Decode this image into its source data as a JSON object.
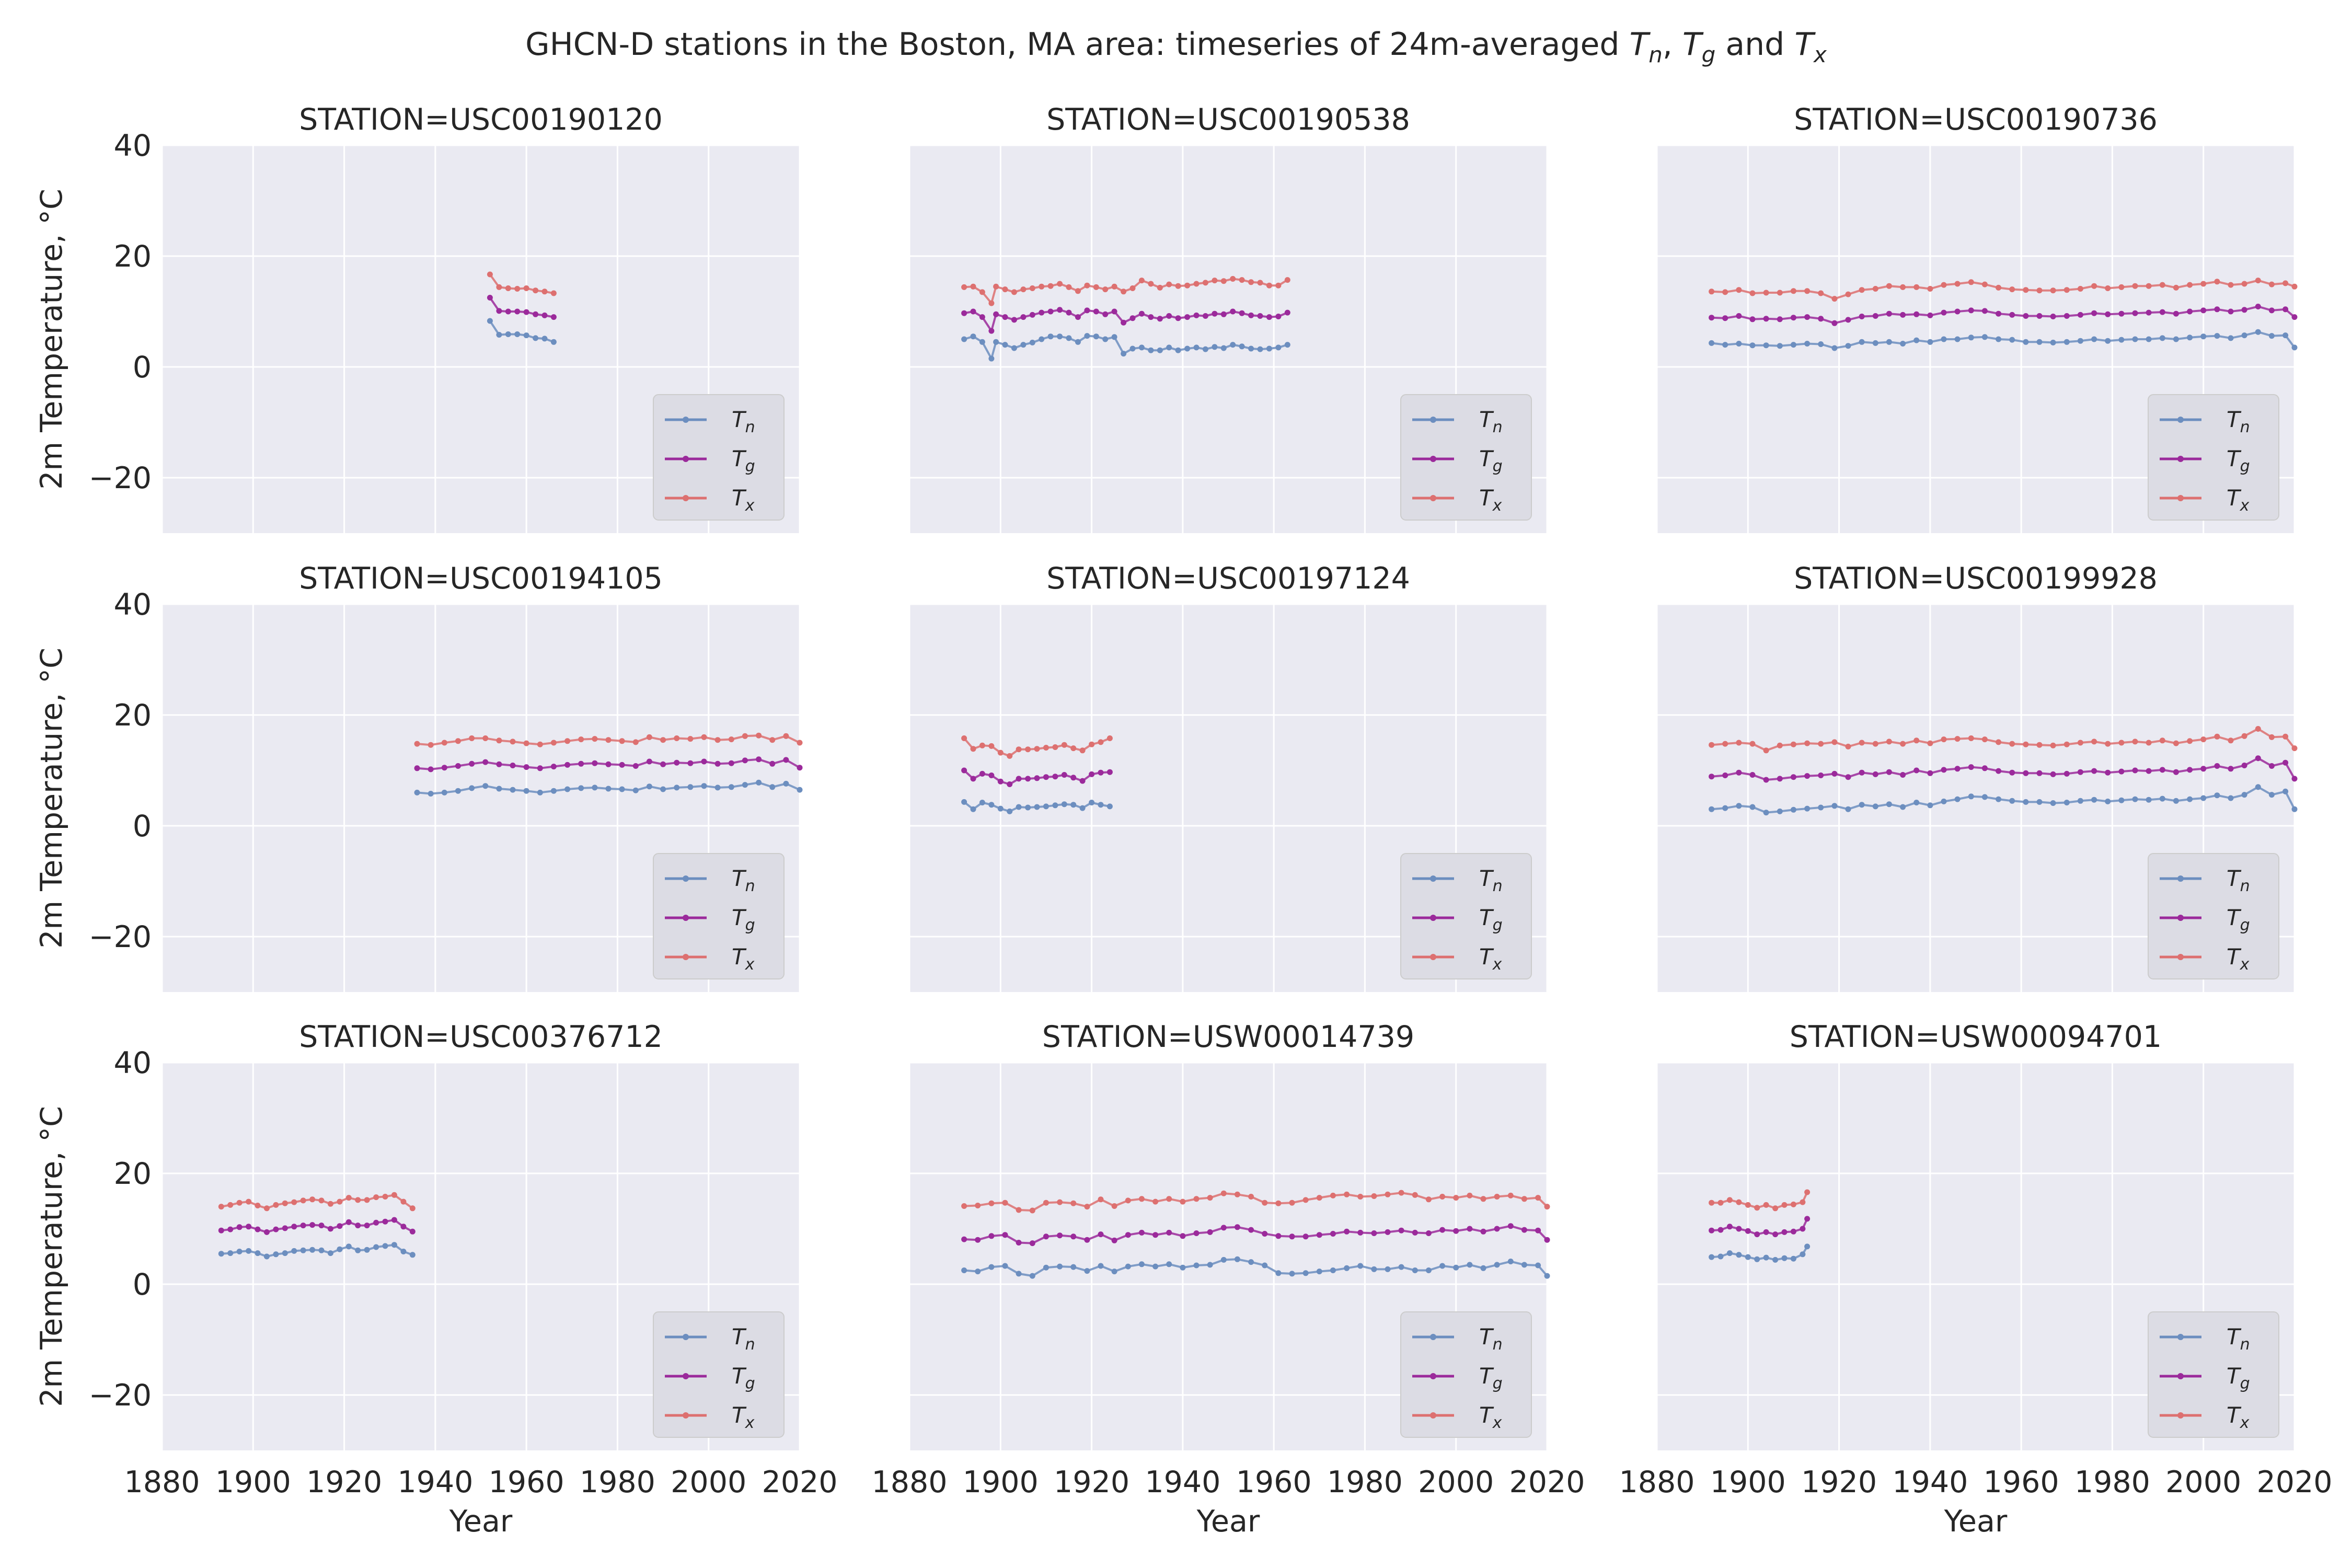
{
  "figure": {
    "title_parts": [
      {
        "text": "GHCN-D stations in the Boston, MA area: timeseries of 24m-averaged ",
        "math": false
      },
      {
        "text": "T",
        "math": true,
        "sub": "n"
      },
      {
        "text": ", ",
        "math": false
      },
      {
        "text": "T",
        "math": true,
        "sub": "g"
      },
      {
        "text": " and ",
        "math": false
      },
      {
        "text": "T",
        "math": true,
        "sub": "x"
      }
    ],
    "xlabel": "Year",
    "ylabel": "2m Temperature, °C",
    "background": "#eaeaf2",
    "grid": true,
    "legend_placement": "lower-right"
  },
  "chart_data": {
    "type": "line",
    "xlim": [
      1880,
      2020
    ],
    "ylim": [
      -30,
      40
    ],
    "xticks": [
      "1880",
      "1900",
      "1920",
      "1940",
      "1960",
      "1980",
      "2000",
      "2020"
    ],
    "yticks": [
      "40",
      "20",
      "0",
      "−20"
    ],
    "ytick_values": [
      40,
      20,
      0,
      -20
    ],
    "xtick_values": [
      1880,
      1900,
      1920,
      1940,
      1960,
      1980,
      2000,
      2020
    ],
    "series_legend": [
      {
        "key": "Tn",
        "label": "T",
        "sub": "n",
        "color": "#6c8ebf"
      },
      {
        "key": "Tg",
        "label": "T",
        "sub": "g",
        "color": "#9b2a9b"
      },
      {
        "key": "Tx",
        "label": "T",
        "sub": "x",
        "color": "#dd7070"
      }
    ],
    "panels": [
      {
        "title": "STATION=USC00190120",
        "x": [
          1952,
          1954,
          1956,
          1958,
          1960,
          1962,
          1964,
          1966
        ],
        "Tn": [
          8.3,
          5.8,
          5.9,
          5.9,
          5.7,
          5.2,
          5.1,
          4.5
        ],
        "Tg": [
          12.5,
          10.1,
          10.0,
          10.0,
          9.9,
          9.5,
          9.3,
          9.0
        ],
        "Tx": [
          16.7,
          14.4,
          14.2,
          14.1,
          14.2,
          13.8,
          13.6,
          13.3
        ]
      },
      {
        "title": "STATION=USC00190538",
        "x": [
          1892,
          1894,
          1896,
          1898,
          1899,
          1901,
          1903,
          1905,
          1907,
          1909,
          1911,
          1913,
          1915,
          1917,
          1919,
          1921,
          1923,
          1925,
          1927,
          1929,
          1931,
          1933,
          1935,
          1937,
          1939,
          1941,
          1943,
          1945,
          1947,
          1949,
          1951,
          1953,
          1955,
          1957,
          1959,
          1961,
          1963
        ],
        "Tn": [
          5.0,
          5.5,
          4.5,
          1.5,
          4.5,
          4.0,
          3.4,
          4.0,
          4.4,
          5.0,
          5.5,
          5.5,
          5.2,
          4.5,
          5.6,
          5.5,
          5.0,
          5.4,
          2.4,
          3.3,
          3.5,
          3.0,
          3.0,
          3.5,
          3.0,
          3.3,
          3.5,
          3.2,
          3.6,
          3.4,
          4.0,
          3.7,
          3.3,
          3.2,
          3.3,
          3.5,
          4.0
        ],
        "Tg": [
          9.7,
          10.0,
          9.0,
          6.5,
          9.5,
          9.0,
          8.5,
          9.0,
          9.4,
          9.8,
          10.0,
          10.3,
          9.8,
          9.0,
          10.2,
          10.0,
          9.5,
          10.0,
          8.0,
          8.8,
          9.6,
          9.0,
          8.7,
          9.2,
          8.8,
          9.0,
          9.3,
          9.2,
          9.6,
          9.5,
          10.0,
          9.7,
          9.3,
          9.2,
          9.0,
          9.1,
          9.8
        ],
        "Tx": [
          14.4,
          14.5,
          13.5,
          11.5,
          14.5,
          14.0,
          13.5,
          14.0,
          14.2,
          14.5,
          14.6,
          15.0,
          14.4,
          13.7,
          14.7,
          14.4,
          14.0,
          14.5,
          13.6,
          14.2,
          15.6,
          15.0,
          14.3,
          14.9,
          14.6,
          14.7,
          15.0,
          15.2,
          15.6,
          15.5,
          15.9,
          15.7,
          15.3,
          15.2,
          14.7,
          14.7,
          15.7
        ]
      },
      {
        "title": "STATION=USC00190736",
        "x": [
          1892,
          1895,
          1898,
          1901,
          1904,
          1907,
          1910,
          1913,
          1916,
          1919,
          1922,
          1925,
          1928,
          1931,
          1934,
          1937,
          1940,
          1943,
          1946,
          1949,
          1952,
          1955,
          1958,
          1961,
          1964,
          1967,
          1970,
          1973,
          1976,
          1979,
          1982,
          1985,
          1988,
          1991,
          1994,
          1997,
          2000,
          2003,
          2006,
          2009,
          2012,
          2015,
          2018,
          2020
        ],
        "Tn": [
          4.3,
          4.0,
          4.2,
          3.9,
          3.9,
          3.8,
          4.0,
          4.2,
          4.1,
          3.4,
          3.8,
          4.5,
          4.3,
          4.5,
          4.2,
          4.8,
          4.5,
          5.0,
          5.0,
          5.3,
          5.4,
          5.0,
          4.9,
          4.5,
          4.5,
          4.4,
          4.5,
          4.7,
          5.0,
          4.7,
          4.9,
          5.0,
          5.0,
          5.2,
          5.0,
          5.3,
          5.5,
          5.6,
          5.2,
          5.7,
          6.3,
          5.6,
          5.7,
          3.5
        ],
        "Tg": [
          8.9,
          8.8,
          9.2,
          8.6,
          8.7,
          8.6,
          8.9,
          9.0,
          8.7,
          7.9,
          8.5,
          9.1,
          9.2,
          9.6,
          9.4,
          9.5,
          9.3,
          9.8,
          10.0,
          10.2,
          10.1,
          9.6,
          9.4,
          9.2,
          9.2,
          9.1,
          9.2,
          9.4,
          9.7,
          9.5,
          9.6,
          9.7,
          9.8,
          9.9,
          9.6,
          10.0,
          10.2,
          10.4,
          10.0,
          10.3,
          10.9,
          10.2,
          10.4,
          9.0
        ],
        "Tx": [
          13.6,
          13.5,
          13.9,
          13.3,
          13.4,
          13.4,
          13.7,
          13.7,
          13.3,
          12.3,
          13.1,
          13.9,
          14.1,
          14.6,
          14.4,
          14.4,
          14.1,
          14.8,
          15.0,
          15.3,
          14.9,
          14.3,
          14.0,
          13.9,
          13.8,
          13.8,
          13.9,
          14.1,
          14.6,
          14.2,
          14.4,
          14.6,
          14.6,
          14.8,
          14.3,
          14.8,
          15.0,
          15.4,
          14.8,
          15.0,
          15.6,
          14.9,
          15.1,
          14.5
        ]
      },
      {
        "title": "STATION=USC00194105",
        "x": [
          1936,
          1939,
          1942,
          1945,
          1948,
          1951,
          1954,
          1957,
          1960,
          1963,
          1966,
          1969,
          1972,
          1975,
          1978,
          1981,
          1984,
          1987,
          1990,
          1993,
          1996,
          1999,
          2002,
          2005,
          2008,
          2011,
          2014,
          2017,
          2020
        ],
        "Tn": [
          6.0,
          5.8,
          6.0,
          6.3,
          6.8,
          7.2,
          6.7,
          6.5,
          6.3,
          6.0,
          6.3,
          6.6,
          6.8,
          6.9,
          6.7,
          6.6,
          6.4,
          7.1,
          6.6,
          6.9,
          7.0,
          7.2,
          6.9,
          7.0,
          7.4,
          7.8,
          7.0,
          7.6,
          6.5
        ],
        "Tg": [
          10.4,
          10.2,
          10.5,
          10.8,
          11.2,
          11.5,
          11.1,
          10.9,
          10.6,
          10.4,
          10.7,
          11.0,
          11.2,
          11.3,
          11.1,
          11.0,
          10.8,
          11.6,
          11.1,
          11.4,
          11.3,
          11.6,
          11.2,
          11.3,
          11.8,
          12.0,
          11.2,
          11.9,
          10.5
        ],
        "Tx": [
          14.8,
          14.6,
          15.0,
          15.3,
          15.8,
          15.8,
          15.4,
          15.2,
          14.9,
          14.7,
          15.0,
          15.3,
          15.6,
          15.7,
          15.5,
          15.3,
          15.1,
          16.0,
          15.5,
          15.8,
          15.7,
          16.0,
          15.5,
          15.6,
          16.2,
          16.3,
          15.5,
          16.2,
          15.0
        ]
      },
      {
        "title": "STATION=USC00197124",
        "x": [
          1892,
          1894,
          1896,
          1898,
          1900,
          1902,
          1904,
          1906,
          1908,
          1910,
          1912,
          1914,
          1916,
          1918,
          1920,
          1922,
          1924
        ],
        "Tn": [
          4.3,
          3.0,
          4.2,
          3.8,
          3.1,
          2.6,
          3.4,
          3.3,
          3.4,
          3.5,
          3.7,
          3.9,
          3.8,
          3.2,
          4.2,
          3.8,
          3.5
        ],
        "Tg": [
          10.0,
          8.5,
          9.4,
          9.1,
          8.0,
          7.5,
          8.5,
          8.5,
          8.6,
          8.8,
          8.9,
          9.2,
          8.7,
          8.1,
          9.3,
          9.6,
          9.7
        ],
        "Tx": [
          15.8,
          13.9,
          14.5,
          14.4,
          13.2,
          12.6,
          13.8,
          13.8,
          13.9,
          14.1,
          14.2,
          14.6,
          14.0,
          13.6,
          14.7,
          15.1,
          15.8
        ]
      },
      {
        "title": "STATION=USC00199928",
        "x": [
          1892,
          1895,
          1898,
          1901,
          1904,
          1907,
          1910,
          1913,
          1916,
          1919,
          1922,
          1925,
          1928,
          1931,
          1934,
          1937,
          1940,
          1943,
          1946,
          1949,
          1952,
          1955,
          1958,
          1961,
          1964,
          1967,
          1970,
          1973,
          1976,
          1979,
          1982,
          1985,
          1988,
          1991,
          1994,
          1997,
          2000,
          2003,
          2006,
          2009,
          2012,
          2015,
          2018,
          2020
        ],
        "Tn": [
          3.0,
          3.2,
          3.6,
          3.4,
          2.4,
          2.6,
          2.9,
          3.1,
          3.3,
          3.6,
          3.0,
          3.8,
          3.5,
          3.9,
          3.4,
          4.2,
          3.7,
          4.4,
          4.8,
          5.3,
          5.2,
          4.8,
          4.5,
          4.3,
          4.3,
          4.1,
          4.2,
          4.5,
          4.7,
          4.4,
          4.6,
          4.8,
          4.7,
          4.9,
          4.5,
          4.8,
          5.0,
          5.5,
          5.0,
          5.6,
          7.0,
          5.6,
          6.2,
          3.0
        ],
        "Tg": [
          8.9,
          9.1,
          9.6,
          9.2,
          8.3,
          8.5,
          8.8,
          9.0,
          9.1,
          9.4,
          8.8,
          9.6,
          9.3,
          9.7,
          9.2,
          10.0,
          9.5,
          10.1,
          10.3,
          10.6,
          10.4,
          9.9,
          9.6,
          9.5,
          9.5,
          9.3,
          9.4,
          9.7,
          9.9,
          9.6,
          9.8,
          10.0,
          9.9,
          10.1,
          9.7,
          10.1,
          10.3,
          10.8,
          10.3,
          10.9,
          12.2,
          10.8,
          11.4,
          8.5
        ],
        "Tx": [
          14.6,
          14.8,
          15.0,
          14.8,
          13.6,
          14.5,
          14.7,
          14.9,
          14.8,
          15.1,
          14.3,
          15.0,
          14.8,
          15.2,
          14.8,
          15.4,
          14.9,
          15.6,
          15.7,
          15.8,
          15.6,
          15.1,
          14.8,
          14.7,
          14.6,
          14.5,
          14.7,
          15.0,
          15.2,
          14.8,
          15.0,
          15.2,
          15.0,
          15.4,
          14.9,
          15.3,
          15.6,
          16.1,
          15.4,
          16.2,
          17.5,
          16.0,
          16.1,
          14.0
        ]
      },
      {
        "title": "STATION=USC00376712",
        "x": [
          1893,
          1895,
          1897,
          1899,
          1901,
          1903,
          1905,
          1907,
          1909,
          1911,
          1913,
          1915,
          1917,
          1919,
          1921,
          1923,
          1925,
          1927,
          1929,
          1931,
          1933,
          1935
        ],
        "Tn": [
          5.5,
          5.6,
          5.9,
          6.0,
          5.6,
          5.0,
          5.4,
          5.6,
          6.0,
          6.1,
          6.2,
          6.1,
          5.6,
          6.3,
          6.8,
          6.1,
          6.2,
          6.7,
          6.9,
          7.1,
          5.9,
          5.3
        ],
        "Tg": [
          9.7,
          9.9,
          10.3,
          10.4,
          9.9,
          9.4,
          9.9,
          10.1,
          10.4,
          10.6,
          10.7,
          10.6,
          10.0,
          10.5,
          11.2,
          10.6,
          10.6,
          11.1,
          11.3,
          11.6,
          10.4,
          9.5
        ],
        "Tx": [
          14.0,
          14.3,
          14.7,
          14.9,
          14.2,
          13.7,
          14.3,
          14.6,
          14.8,
          15.1,
          15.3,
          15.1,
          14.5,
          14.9,
          15.6,
          15.2,
          15.2,
          15.7,
          15.8,
          16.1,
          14.9,
          13.7
        ]
      },
      {
        "title": "STATION=USW00014739",
        "x": [
          1892,
          1895,
          1898,
          1901,
          1904,
          1907,
          1910,
          1913,
          1916,
          1919,
          1922,
          1925,
          1928,
          1931,
          1934,
          1937,
          1940,
          1943,
          1946,
          1949,
          1952,
          1955,
          1958,
          1961,
          1964,
          1967,
          1970,
          1973,
          1976,
          1979,
          1982,
          1985,
          1988,
          1991,
          1994,
          1997,
          2000,
          2003,
          2006,
          2009,
          2012,
          2015,
          2018,
          2020
        ],
        "Tn": [
          2.5,
          2.3,
          3.1,
          3.3,
          1.9,
          1.5,
          3.0,
          3.2,
          3.1,
          2.4,
          3.3,
          2.3,
          3.2,
          3.6,
          3.2,
          3.6,
          3.0,
          3.4,
          3.5,
          4.4,
          4.5,
          4.0,
          3.4,
          2.0,
          1.9,
          2.0,
          2.3,
          2.5,
          2.9,
          3.3,
          2.7,
          2.7,
          3.1,
          2.5,
          2.5,
          3.3,
          3.0,
          3.5,
          2.9,
          3.5,
          4.1,
          3.5,
          3.4,
          1.5
        ],
        "Tg": [
          8.1,
          8.0,
          8.7,
          8.9,
          7.5,
          7.4,
          8.6,
          8.8,
          8.6,
          8.0,
          9.0,
          7.9,
          8.9,
          9.3,
          8.9,
          9.3,
          8.7,
          9.2,
          9.4,
          10.2,
          10.3,
          9.8,
          9.1,
          8.7,
          8.6,
          8.6,
          8.9,
          9.1,
          9.5,
          9.3,
          9.2,
          9.4,
          9.7,
          9.3,
          9.2,
          9.8,
          9.6,
          10.0,
          9.5,
          10.0,
          10.5,
          9.8,
          9.7,
          8.0
        ],
        "Tx": [
          14.1,
          14.2,
          14.6,
          14.7,
          13.4,
          13.3,
          14.7,
          14.8,
          14.6,
          14.0,
          15.3,
          14.1,
          15.1,
          15.4,
          14.9,
          15.4,
          14.9,
          15.4,
          15.6,
          16.4,
          16.2,
          15.8,
          14.7,
          14.6,
          14.7,
          15.2,
          15.6,
          16.0,
          16.2,
          15.8,
          15.9,
          16.2,
          16.5,
          16.1,
          15.3,
          15.8,
          15.6,
          16.0,
          15.4,
          15.8,
          16.0,
          15.4,
          15.6,
          14.0
        ]
      },
      {
        "title": "STATION=USW00094701",
        "x": [
          1892,
          1894,
          1896,
          1898,
          1900,
          1902,
          1904,
          1906,
          1908,
          1910,
          1912,
          1913
        ],
        "Tn": [
          4.9,
          5.0,
          5.6,
          5.3,
          4.9,
          4.5,
          4.8,
          4.4,
          4.7,
          4.6,
          5.4,
          6.8
        ],
        "Tg": [
          9.7,
          9.8,
          10.4,
          10.0,
          9.6,
          9.0,
          9.4,
          9.0,
          9.4,
          9.5,
          10.0,
          11.8
        ],
        "Tx": [
          14.7,
          14.7,
          15.2,
          14.8,
          14.3,
          13.8,
          14.3,
          13.7,
          14.3,
          14.4,
          14.8,
          16.6
        ]
      }
    ]
  }
}
